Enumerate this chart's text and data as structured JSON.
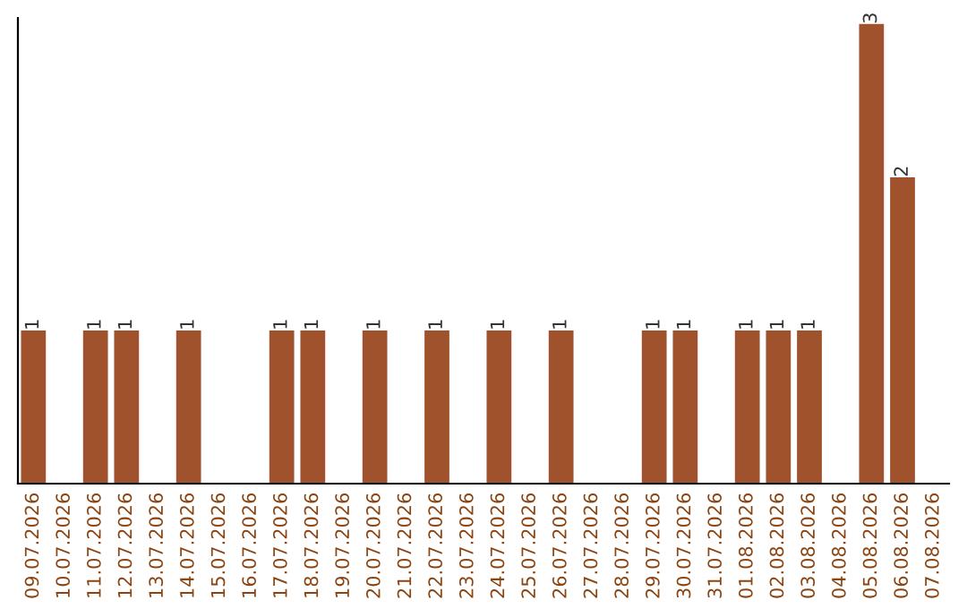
{
  "chart_data": {
    "type": "bar",
    "categories": [
      "09.07.2026",
      "10.07.2026",
      "11.07.2026",
      "12.07.2026",
      "13.07.2026",
      "14.07.2026",
      "15.07.2026",
      "16.07.2026",
      "17.07.2026",
      "18.07.2026",
      "19.07.2026",
      "20.07.2026",
      "21.07.2026",
      "22.07.2026",
      "23.07.2026",
      "24.07.2026",
      "25.07.2026",
      "26.07.2026",
      "27.07.2026",
      "28.07.2026",
      "29.07.2026",
      "30.07.2026",
      "31.07.2026",
      "01.08.2026",
      "02.08.2026",
      "03.08.2026",
      "04.08.2026",
      "05.08.2026",
      "06.08.2026",
      "07.08.2026"
    ],
    "values": [
      1,
      0,
      1,
      1,
      0,
      1,
      0,
      0,
      1,
      1,
      0,
      1,
      0,
      1,
      0,
      1,
      0,
      1,
      0,
      0,
      1,
      1,
      0,
      1,
      1,
      1,
      0,
      3,
      2,
      0
    ],
    "value_labels": [
      "1",
      null,
      "1",
      "1",
      null,
      "1",
      null,
      null,
      "1",
      "1",
      null,
      "1",
      null,
      "1",
      null,
      "1",
      null,
      "1",
      null,
      null,
      "1",
      "1",
      null,
      "1",
      "1",
      "1",
      null,
      "3",
      "2",
      null
    ],
    "color": "#a0522d",
    "ylim": [
      0,
      3.04
    ],
    "tick_labels": "x",
    "grid": false,
    "legend": false
  }
}
